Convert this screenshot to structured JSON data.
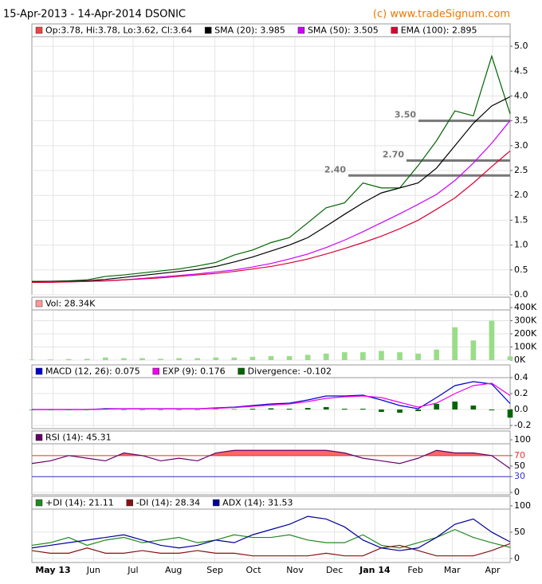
{
  "chart_data": [
    {
      "type": "line",
      "title": "15-Apr-2013 - 14-Apr-2014 DSONIC",
      "source": "(c) www.tradeSignum.com",
      "x": [
        0,
        2,
        4,
        6,
        8,
        10,
        12,
        14,
        16,
        18,
        20,
        22,
        24,
        26,
        28,
        30,
        32,
        34,
        36,
        38,
        40,
        42,
        44,
        46,
        48,
        50,
        52
      ],
      "xlim": [
        0,
        52
      ],
      "xticks": [
        {
          "value": 2.3,
          "label": "May 13"
        },
        {
          "value": 6.7,
          "label": "Jun"
        },
        {
          "value": 11.0,
          "label": "Jul"
        },
        {
          "value": 15.4,
          "label": "Aug"
        },
        {
          "value": 19.9,
          "label": "Sep"
        },
        {
          "value": 24.1,
          "label": "Oct"
        },
        {
          "value": 28.6,
          "label": "Nov"
        },
        {
          "value": 32.9,
          "label": "Dec"
        },
        {
          "value": 37.3,
          "label": "Jan 14"
        },
        {
          "value": 41.7,
          "label": "Feb"
        },
        {
          "value": 45.7,
          "label": "Mar"
        },
        {
          "value": 50.1,
          "label": "Apr"
        }
      ],
      "ylim": [
        0,
        5.45
      ],
      "yticks": [
        {
          "value": 5.0,
          "label": "5.0"
        },
        4.5,
        {
          "value": 4.0,
          "label": "4.0"
        },
        3.5,
        {
          "value": 3.0,
          "label": "3.0"
        },
        2.5,
        {
          "value": 2.0,
          "label": "2.0"
        },
        1.5,
        {
          "value": 1.0,
          "label": "1.0"
        },
        0.5,
        {
          "value": 0.0,
          "label": "0.0"
        }
      ],
      "levels": [
        {
          "value": 3.5,
          "label": "3.50"
        },
        {
          "value": 2.7,
          "label": "2.70"
        },
        {
          "value": 2.4,
          "label": "2.40"
        }
      ],
      "series": [
        {
          "name": "Op:3.78, Hi:3.78, Lo:3.62, Cl:3.64",
          "color": "#006600",
          "legend_color": "#ee4444",
          "values": [
            0.27,
            0.27,
            0.28,
            0.3,
            0.37,
            0.4,
            0.44,
            0.48,
            0.52,
            0.58,
            0.65,
            0.8,
            0.9,
            1.05,
            1.15,
            1.45,
            1.75,
            1.85,
            2.25,
            2.15,
            2.15,
            2.6,
            3.1,
            3.7,
            3.6,
            4.8,
            3.64
          ]
        },
        {
          "name": "SMA (20): 3.985",
          "color": "#000000",
          "values": [
            0.26,
            0.27,
            0.27,
            0.28,
            0.31,
            0.35,
            0.39,
            0.43,
            0.47,
            0.51,
            0.57,
            0.66,
            0.76,
            0.88,
            1.0,
            1.15,
            1.38,
            1.62,
            1.85,
            2.05,
            2.15,
            2.25,
            2.55,
            3.0,
            3.45,
            3.8,
            3.985
          ]
        },
        {
          "name": "SMA (50): 3.505",
          "color": "#cc00ff",
          "values": [
            0.25,
            0.26,
            0.26,
            0.27,
            0.28,
            0.3,
            0.33,
            0.36,
            0.39,
            0.42,
            0.46,
            0.5,
            0.56,
            0.63,
            0.72,
            0.82,
            0.95,
            1.1,
            1.27,
            1.45,
            1.63,
            1.82,
            2.02,
            2.3,
            2.65,
            3.05,
            3.505
          ]
        },
        {
          "name": "EMA (100): 2.895",
          "color": "#dd0033",
          "values": [
            0.25,
            0.25,
            0.26,
            0.27,
            0.28,
            0.3,
            0.32,
            0.34,
            0.37,
            0.4,
            0.43,
            0.47,
            0.52,
            0.57,
            0.64,
            0.72,
            0.82,
            0.93,
            1.05,
            1.18,
            1.33,
            1.5,
            1.72,
            1.95,
            2.25,
            2.58,
            2.895
          ]
        }
      ]
    },
    {
      "type": "bar",
      "ylim": [
        0,
        479000
      ],
      "yticks": [
        {
          "value": 400000,
          "label": "400K"
        },
        {
          "value": 300000,
          "label": "300K"
        },
        {
          "value": 200000,
          "label": "200K"
        },
        {
          "value": 100000,
          "label": "100K"
        },
        {
          "value": 0,
          "label": "0K"
        }
      ],
      "series": [
        {
          "name": "Vol: 28.34K",
          "color": "#99dd88",
          "legend_color": "#ff9999",
          "values": [
            5000,
            5000,
            8000,
            10000,
            20000,
            15000,
            15000,
            10000,
            15000,
            15000,
            20000,
            20000,
            25000,
            30000,
            30000,
            40000,
            50000,
            60000,
            60000,
            70000,
            60000,
            50000,
            80000,
            250000,
            150000,
            300000,
            28340
          ]
        }
      ]
    },
    {
      "type": "line",
      "ylim": [
        -0.24,
        0.56
      ],
      "yticks": [
        0.4,
        0.2,
        {
          "value": 0.0,
          "label": "0.0"
        },
        -0.2
      ],
      "series": [
        {
          "name": "MACD (12, 26): 0.075",
          "color": "#0000cc",
          "values": [
            0,
            0,
            0,
            0,
            0.01,
            0.01,
            0.01,
            0.01,
            0.01,
            0.01,
            0.02,
            0.03,
            0.05,
            0.07,
            0.08,
            0.12,
            0.17,
            0.17,
            0.18,
            0.12,
            0.05,
            0.01,
            0.15,
            0.3,
            0.35,
            0.32,
            0.075
          ]
        },
        {
          "name": "EXP (9): 0.176",
          "color": "#ee00ee",
          "values": [
            0,
            0,
            0,
            0,
            0.005,
            0.01,
            0.01,
            0.01,
            0.01,
            0.01,
            0.015,
            0.025,
            0.04,
            0.055,
            0.07,
            0.1,
            0.14,
            0.16,
            0.17,
            0.15,
            0.09,
            0.03,
            0.08,
            0.2,
            0.3,
            0.33,
            0.176
          ]
        },
        {
          "name": "Divergence: -0.102",
          "color": "#006600",
          "kind": "bar",
          "values": [
            0,
            0,
            0,
            0,
            0.005,
            0,
            0,
            0,
            0,
            0,
            0.005,
            0.005,
            0.01,
            0.015,
            0.01,
            0.02,
            0.03,
            0.01,
            0.01,
            -0.03,
            -0.04,
            -0.02,
            0.07,
            0.1,
            0.05,
            -0.01,
            -0.102
          ]
        }
      ]
    },
    {
      "type": "line",
      "ylim": [
        -4.5,
        116.7
      ],
      "yticks": [
        100,
        70,
        50,
        30,
        0
      ],
      "overbought": 70,
      "oversold": 30,
      "overbought_color": "#ee3333",
      "oversold_color": "#3333cc",
      "fill_color": "#ff6666",
      "series": [
        {
          "name": "RSI (14): 45.31",
          "color": "#660066",
          "values": [
            55,
            60,
            70,
            65,
            60,
            75,
            70,
            60,
            65,
            60,
            75,
            80,
            80,
            80,
            80,
            80,
            80,
            75,
            65,
            60,
            55,
            65,
            80,
            75,
            75,
            70,
            45.31
          ]
        }
      ]
    },
    {
      "type": "line",
      "ylim": [
        -7.6,
        118
      ],
      "yticks": [
        100,
        50,
        0
      ],
      "series": [
        {
          "name": "+DI (14): 21.11",
          "color": "#228822",
          "values": [
            25,
            30,
            40,
            25,
            35,
            40,
            30,
            35,
            40,
            30,
            35,
            45,
            40,
            40,
            45,
            35,
            30,
            30,
            45,
            25,
            20,
            30,
            40,
            55,
            40,
            30,
            21.11
          ]
        },
        {
          "name": "-DI (14): 28.34",
          "color": "#881111",
          "values": [
            15,
            10,
            10,
            20,
            10,
            10,
            15,
            10,
            10,
            15,
            10,
            10,
            5,
            5,
            5,
            5,
            10,
            5,
            5,
            20,
            25,
            15,
            5,
            5,
            5,
            15,
            28.34
          ]
        },
        {
          "name": "ADX (14): 31.53",
          "color": "#000099",
          "values": [
            20,
            25,
            30,
            35,
            40,
            45,
            35,
            25,
            20,
            25,
            35,
            30,
            45,
            55,
            65,
            80,
            75,
            60,
            35,
            20,
            15,
            20,
            40,
            65,
            75,
            50,
            31.53
          ]
        }
      ]
    }
  ]
}
